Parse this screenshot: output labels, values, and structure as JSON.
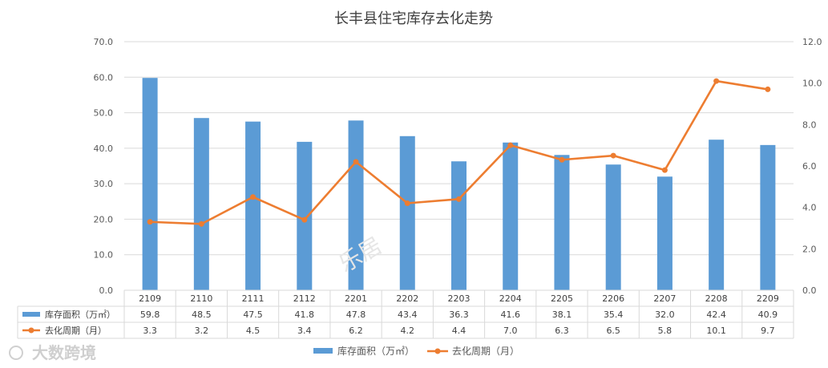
{
  "chart_data": {
    "type": "bar",
    "title": "长丰县住宅库存去化走势",
    "categories": [
      "2109",
      "2110",
      "2111",
      "2112",
      "2201",
      "2202",
      "2203",
      "2204",
      "2205",
      "2206",
      "2207",
      "2208",
      "2209"
    ],
    "series": [
      {
        "name": "库存面积（万㎡）",
        "type": "bar",
        "axis": "left",
        "color": "#5b9bd5",
        "values": [
          59.8,
          48.5,
          47.5,
          41.8,
          47.8,
          43.4,
          36.3,
          41.6,
          38.1,
          35.4,
          32.0,
          42.4,
          40.9
        ]
      },
      {
        "name": "去化周期（月）",
        "type": "line",
        "axis": "right",
        "color": "#ed7d31",
        "values": [
          3.3,
          3.2,
          4.5,
          3.4,
          6.2,
          4.2,
          4.4,
          7.0,
          6.3,
          6.5,
          5.8,
          10.1,
          9.7
        ]
      }
    ],
    "y_left": {
      "min": 0,
      "max": 70,
      "step": 10,
      "ticks": [
        "0.0",
        "10.0",
        "20.0",
        "30.0",
        "40.0",
        "50.0",
        "60.0",
        "70.0"
      ]
    },
    "y_right": {
      "min": 0,
      "max": 12,
      "step": 2,
      "ticks": [
        "0.0",
        "2.0",
        "4.0",
        "6.0",
        "8.0",
        "10.0",
        "12.0"
      ]
    },
    "grid": true,
    "legend_placement": "bottom",
    "data_table": true
  },
  "watermark": {
    "center_text": "乐居",
    "logo_text": "大数跨境"
  }
}
